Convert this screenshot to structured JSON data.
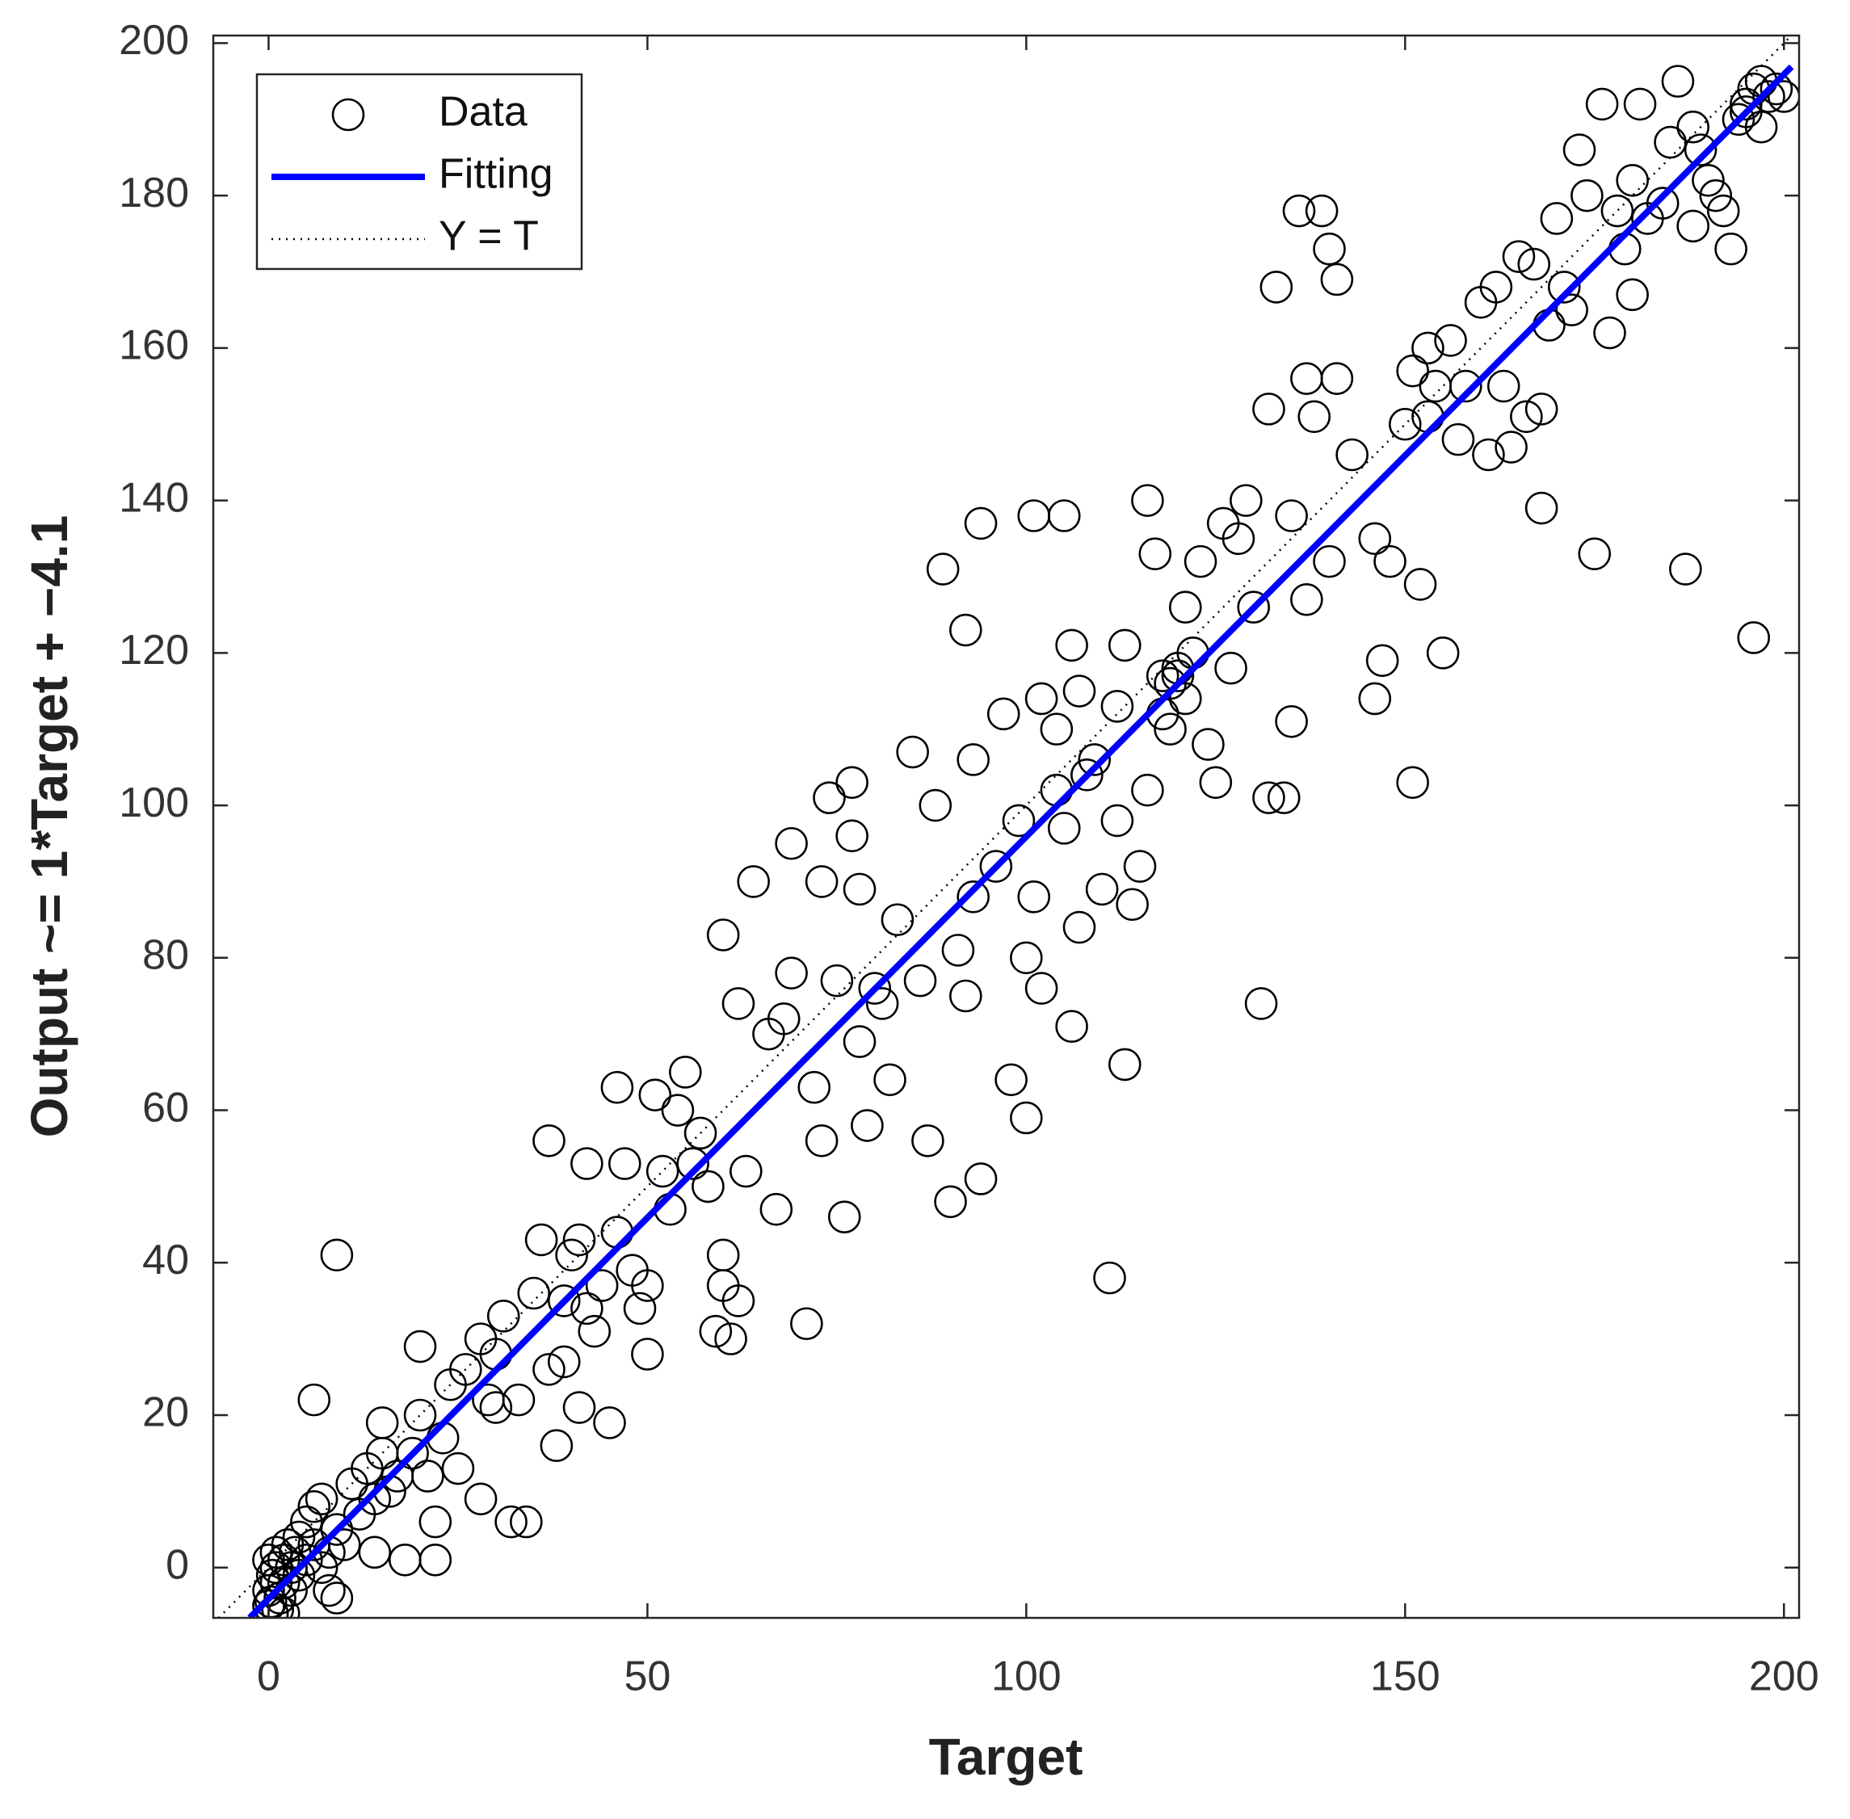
{
  "chart_data": {
    "type": "scatter",
    "xlabel": "Target",
    "ylabel": "Output ~= 1*Target + −4.1",
    "xlim": [
      -7.3,
      202
    ],
    "ylim": [
      -6.6,
      201
    ],
    "xticks": [
      0,
      50,
      100,
      150,
      200
    ],
    "yticks": [
      0,
      20,
      40,
      60,
      80,
      100,
      120,
      140,
      160,
      180,
      200
    ],
    "legend": "upper left",
    "series": [
      {
        "name": "Data",
        "type": "scatter",
        "marker": "circle",
        "color": "#000000",
        "x": [
          0,
          0,
          0.5,
          1,
          1,
          0.5,
          1.5,
          2,
          2,
          2.5,
          3,
          3,
          1,
          0,
          0.3,
          1.2,
          2,
          3.5,
          4,
          4,
          5,
          5,
          6,
          6,
          7,
          7,
          8,
          8,
          9,
          9,
          10,
          11,
          12,
          13,
          14,
          14,
          15,
          15,
          16,
          17,
          18,
          19,
          20,
          20,
          21,
          22,
          22,
          23,
          24,
          25,
          26,
          28,
          28,
          29,
          30,
          30,
          31,
          32,
          33,
          34,
          35,
          36,
          37,
          37,
          38,
          39,
          39,
          40,
          41,
          41,
          42,
          42,
          43,
          44,
          45,
          46,
          46,
          47,
          48,
          49,
          50,
          50,
          51,
          52,
          53,
          54,
          55,
          56,
          57,
          58,
          59,
          60,
          60,
          60,
          61,
          62,
          62,
          63,
          64,
          66,
          67,
          68,
          69,
          69,
          71,
          72,
          73,
          73,
          74,
          75,
          76,
          77,
          77,
          78,
          78,
          79,
          80,
          81,
          82,
          83,
          85,
          86,
          87,
          88,
          89,
          90,
          91,
          92,
          92,
          93,
          93,
          94,
          94,
          96,
          97,
          98,
          99,
          100,
          100,
          101,
          101,
          102,
          102,
          104,
          104,
          105,
          105,
          106,
          106,
          107,
          107,
          108,
          109,
          110,
          111,
          112,
          112,
          113,
          113,
          114,
          115,
          116,
          116,
          117,
          118,
          119,
          120,
          121,
          122,
          123,
          124,
          125,
          126,
          127,
          128,
          129,
          130,
          131,
          132,
          132,
          133,
          134,
          135,
          135,
          136,
          137,
          137,
          138,
          139,
          140,
          140,
          141,
          141,
          143,
          146,
          146,
          147,
          148,
          150,
          151,
          151,
          152,
          153,
          153,
          154,
          155,
          156,
          157,
          158,
          160,
          161,
          162,
          163,
          164,
          165,
          166,
          167,
          168,
          168,
          169,
          170,
          171,
          172,
          173,
          174,
          175,
          176,
          177,
          178,
          179,
          180,
          180,
          181,
          182,
          184,
          185,
          186,
          187,
          188,
          188,
          189,
          190,
          191,
          192,
          193,
          194,
          195,
          196,
          196,
          197,
          198,
          199,
          200,
          195,
          197,
          9,
          6,
          119,
          121,
          118,
          120
        ],
        "values": [
          -5,
          -3,
          -1,
          0,
          2,
          -6,
          -4,
          -2,
          1,
          3,
          0,
          -3,
          -2,
          1,
          -4.5,
          -5.5,
          -6,
          2,
          4,
          -1,
          1,
          6,
          3,
          8,
          0,
          9,
          -3,
          2,
          -4,
          5,
          3,
          11,
          7,
          13,
          2,
          9,
          19,
          15,
          10,
          12,
          1,
          15,
          20,
          29,
          12,
          1,
          6,
          17,
          24,
          13,
          26,
          9,
          30,
          22,
          21,
          28,
          33,
          6,
          22,
          6,
          36,
          43,
          26,
          56,
          16,
          27,
          35,
          41,
          43,
          21,
          53,
          34,
          31,
          37,
          19,
          44,
          63,
          53,
          39,
          34,
          28,
          37,
          62,
          52,
          47,
          60,
          65,
          53,
          57,
          50,
          31,
          37,
          41,
          83,
          30,
          35,
          74,
          52,
          90,
          70,
          47,
          72,
          78,
          95,
          32,
          63,
          90,
          56,
          101,
          77,
          46,
          103,
          96,
          89,
          69,
          58,
          76,
          74,
          64,
          85,
          107,
          77,
          56,
          100,
          131,
          48,
          81,
          75,
          123,
          106,
          88,
          137,
          51,
          92,
          112,
          64,
          98,
          80,
          59,
          138,
          88,
          114,
          76,
          102,
          110,
          97,
          138,
          121,
          71,
          84,
          115,
          104,
          106,
          89,
          38,
          98,
          113,
          121,
          66,
          87,
          92,
          102,
          140,
          133,
          117,
          110,
          117,
          126,
          120,
          132,
          108,
          103,
          137,
          118,
          135,
          140,
          126,
          74,
          101,
          152,
          168,
          101,
          111,
          138,
          178,
          127,
          156,
          151,
          178,
          173,
          132,
          169,
          156,
          146,
          114,
          135,
          119,
          132,
          150,
          157,
          103,
          129,
          160,
          151,
          155,
          120,
          161,
          148,
          155,
          166,
          146,
          168,
          155,
          147,
          172,
          151,
          171,
          139,
          152,
          163,
          177,
          168,
          165,
          186,
          180,
          133,
          192,
          162,
          178,
          173,
          182,
          167,
          192,
          177,
          179,
          187,
          195,
          131,
          176,
          189,
          186,
          182,
          180,
          178,
          173,
          190,
          192,
          122,
          194,
          195,
          193,
          194,
          193,
          191,
          189,
          41,
          22,
          116,
          114,
          112,
          118
        ]
      },
      {
        "name": "Fitting",
        "type": "line",
        "style": "solid",
        "color": "#0000ff",
        "x": [
          -2.5,
          201
        ],
        "values": [
          -6.6,
          196.9
        ]
      },
      {
        "name": "Y = T",
        "type": "line",
        "style": "dotted",
        "color": "#000000",
        "x": [
          -6.6,
          201
        ],
        "values": [
          -6.6,
          201
        ]
      }
    ]
  }
}
